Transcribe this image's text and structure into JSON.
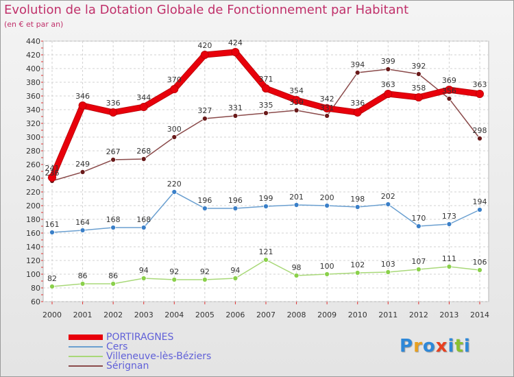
{
  "header": {
    "title": "Evolution de la Dotation Globale de Fonctionnement par Habitant",
    "subtitle": "(en € et par an)"
  },
  "logo": {
    "text": "Proxiti"
  },
  "chart_data": {
    "type": "line",
    "title": "Evolution de la Dotation Globale de Fonctionnement par Habitant",
    "subtitle": "(en € et par an)",
    "xlabel": "",
    "ylabel": "",
    "ylim": [
      60,
      440
    ],
    "yticks": [
      60,
      80,
      100,
      120,
      140,
      160,
      180,
      200,
      220,
      240,
      260,
      280,
      300,
      320,
      340,
      360,
      380,
      400,
      420,
      440
    ],
    "grid": true,
    "legend_position": "bottom-left",
    "x": [
      "2000",
      "2001",
      "2002",
      "2003",
      "2004",
      "2005",
      "2006",
      "2007",
      "2008",
      "2009",
      "2010",
      "2011",
      "2012",
      "2013",
      "2014"
    ],
    "series": [
      {
        "name": "PORTIRAGNES",
        "color": "#e8000b",
        "marker": "#e8000b",
        "thick": true,
        "values": [
          241,
          346,
          336,
          344,
          370,
          420,
          424,
          371,
          354,
          342,
          336,
          363,
          358,
          369,
          363
        ],
        "labels": [
          "241",
          "346",
          "336",
          "344",
          "370",
          "420",
          "424",
          "371",
          "354",
          "342",
          "336",
          "363",
          "358",
          "369",
          "363"
        ]
      },
      {
        "name": "Cers",
        "color": "#6a9fd0",
        "marker": "#3a7fc8",
        "thick": false,
        "values": [
          161,
          164,
          168,
          168,
          220,
          196,
          196,
          199,
          201,
          200,
          198,
          202,
          170,
          173,
          194
        ],
        "labels": [
          "161",
          "164",
          "168",
          "168",
          "220",
          "196",
          "196",
          "199",
          "201",
          "200",
          "198",
          "202",
          "170",
          "173",
          "194"
        ]
      },
      {
        "name": "Villeneuve-lès-Béziers",
        "color": "#a8d878",
        "marker": "#8ad04a",
        "thick": false,
        "values": [
          82,
          86,
          86,
          94,
          92,
          92,
          94,
          121,
          98,
          100,
          102,
          103,
          107,
          111,
          106
        ],
        "labels": [
          "82",
          "86",
          "86",
          "94",
          "92",
          "92",
          "94",
          "121",
          "98",
          "100",
          "102",
          "103",
          "107",
          "111",
          "106"
        ]
      },
      {
        "name": "Sérignan",
        "color": "#8a4a4a",
        "marker": "#6a1a1a",
        "thick": false,
        "values": [
          236,
          249,
          267,
          268,
          300,
          327,
          331,
          335,
          339,
          331,
          394,
          399,
          392,
          356,
          298
        ],
        "labels": [
          "236",
          "249",
          "267",
          "268",
          "300",
          "327",
          "331",
          "335",
          "339",
          "331",
          "394",
          "399",
          "392",
          "356",
          "298"
        ]
      }
    ]
  }
}
